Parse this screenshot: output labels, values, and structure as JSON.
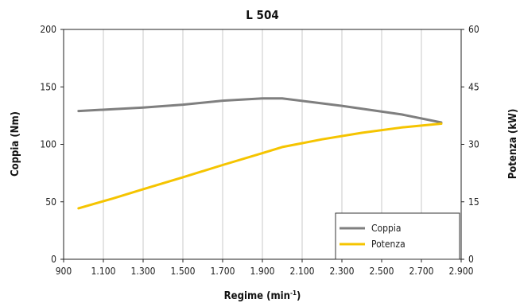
{
  "chart_data": {
    "type": "line",
    "title": "L 504",
    "xlabel": "Regime (min",
    "xlabel_sup": "-1",
    "xlabel_end": ")",
    "ylabel_left": "Coppia (Nm)",
    "ylabel_right": "Potenza (kW)",
    "xlim": [
      900,
      2900
    ],
    "ylim_left": [
      0,
      200
    ],
    "ylim_right": [
      0,
      60
    ],
    "x_ticks": [
      900,
      1100,
      1300,
      1500,
      1700,
      1900,
      2100,
      2300,
      2500,
      2700,
      2900
    ],
    "x_tick_labels": [
      "900",
      "1.100",
      "1.300",
      "1.500",
      "1.700",
      "1.900",
      "2.100",
      "2.300",
      "2.500",
      "2.700",
      "2.900"
    ],
    "y_left_ticks": [
      0,
      50,
      100,
      150,
      200
    ],
    "y_left_tick_labels": [
      "0",
      "50",
      "100",
      "150",
      "200"
    ],
    "y_right_ticks": [
      0,
      15,
      30,
      45,
      60
    ],
    "y_right_tick_labels": [
      "0",
      "15",
      "30",
      "45",
      "60"
    ],
    "grid": "vertical",
    "legend_position": "bottom-right",
    "series": [
      {
        "name": "Coppia",
        "axis": "left",
        "color": "#7f7f7f",
        "x": [
          975,
          1300,
          1500,
          1700,
          1900,
          2000,
          2300,
          2600,
          2800
        ],
        "y": [
          129,
          132,
          134.5,
          138,
          140,
          140,
          133.5,
          126,
          119
        ]
      },
      {
        "name": "Potenza",
        "axis": "right",
        "color": "#f5c400",
        "x": [
          975,
          1150,
          1300,
          1500,
          1700,
          1900,
          2000,
          2200,
          2400,
          2600,
          2800
        ],
        "y": [
          13.3,
          15.9,
          18.3,
          21.4,
          24.6,
          27.7,
          29.3,
          31.3,
          33,
          34.4,
          35.4
        ]
      }
    ]
  }
}
